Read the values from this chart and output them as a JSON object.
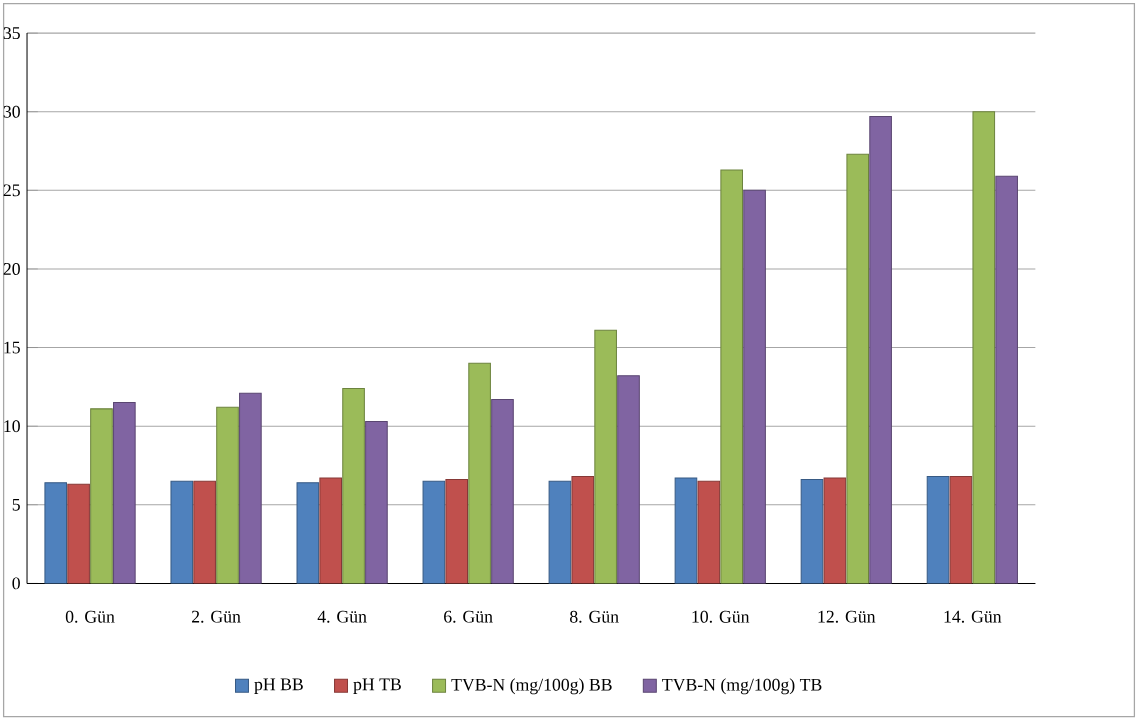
{
  "chart_data": {
    "type": "bar",
    "categories": [
      "0. Gün",
      "2. Gün",
      "4. Gün",
      "6. Gün",
      "8. Gün",
      "10. Gün",
      "12. Gün",
      "14. Gün"
    ],
    "series": [
      {
        "name": "pH BB",
        "color": "#4f81bd",
        "values": [
          6.4,
          6.5,
          6.4,
          6.5,
          6.5,
          6.7,
          6.6,
          6.8
        ]
      },
      {
        "name": "pH TB",
        "color": "#c0504d",
        "values": [
          6.3,
          6.5,
          6.7,
          6.6,
          6.8,
          6.5,
          6.7,
          6.8
        ]
      },
      {
        "name": "TVB-N (mg/100g) BB",
        "color": "#9bbb59",
        "values": [
          11.1,
          11.2,
          12.4,
          14.0,
          16.1,
          26.3,
          27.3,
          30.0
        ]
      },
      {
        "name": "TVB-N (mg/100g) TB",
        "color": "#8064a2",
        "values": [
          11.5,
          12.1,
          10.3,
          11.7,
          13.2,
          25.0,
          29.7,
          25.9
        ]
      }
    ],
    "ylim": [
      0,
      35
    ],
    "yticks": [
      0,
      5,
      10,
      15,
      20,
      25,
      30,
      35
    ],
    "grid": "y",
    "legend": "bottom"
  }
}
